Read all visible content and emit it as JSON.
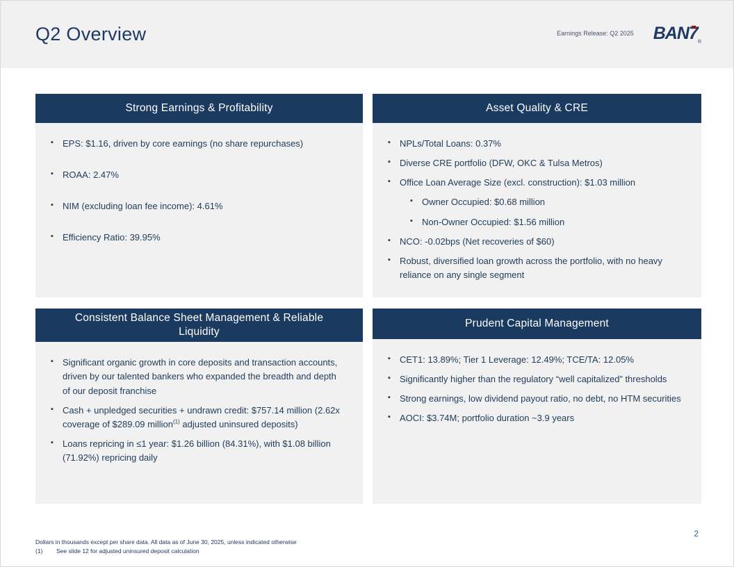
{
  "page": {
    "title": "Q2 Overview",
    "eyebrow": "Earnings Release: Q2 2025",
    "logo_text_main": "BAN",
    "logo_text_seven": "7",
    "logo_reg": "®",
    "page_number": "2",
    "footer_line1": "Dollars in thousands except per share data. All data as of June 30, 2025, unless indicated otherwise",
    "footer_note_label": "(1)",
    "footer_note_text": "See slide 12 for adjusted uninsured deposit calculation"
  },
  "colors": {
    "header_navy": "#1b3a5f",
    "panel_bg": "#f1f1f2",
    "body_text": "#1f3b57",
    "title_navy": "#1f3864",
    "logo_red": "#c00000"
  },
  "panels": [
    {
      "title": "Strong Earnings & Profitability",
      "bullets": [
        {
          "text": "EPS: $1.16, driven by core earnings (no share repurchases)"
        },
        {
          "text": "ROAA: 2.47%"
        },
        {
          "text": "NIM (excluding loan fee income): 4.61%"
        },
        {
          "text": "Efficiency Ratio: 39.95%"
        }
      ]
    },
    {
      "title": "Asset Quality & CRE",
      "bullets": [
        {
          "text": "NPLs/Total Loans: 0.37%"
        },
        {
          "text": "Diverse CRE portfolio (DFW, OKC & Tulsa Metros)"
        },
        {
          "text": "Office Loan Average Size (excl. construction): $1.03 million",
          "sub": [
            {
              "text": "Owner Occupied: $0.68 million"
            },
            {
              "text": "Non-Owner Occupied: $1.56 million"
            }
          ]
        },
        {
          "text": "NCO: -0.02bps (Net recoveries of $60)"
        },
        {
          "text": "Robust, diversified loan growth across the portfolio, with no heavy reliance on any single segment"
        }
      ]
    },
    {
      "title": "Consistent Balance Sheet Management & Reliable Liquidity",
      "bullets": [
        {
          "text": "Significant organic growth in core deposits and transaction accounts, driven by our talented bankers who expanded the breadth and depth of our deposit franchise"
        },
        {
          "parts": {
            "before": "Cash + unpledged securities + undrawn credit: $757.14 million (2.62x coverage of $289.09 million",
            "sup": "(1)",
            "after": " adjusted uninsured deposits)"
          }
        },
        {
          "text": "Loans repricing in ≤1 year: $1.26 billion (84.31%), with $1.08 billion (71.92%) repricing daily"
        }
      ]
    },
    {
      "title": "Prudent Capital Management",
      "bullets": [
        {
          "text": "CET1: 13.89%; Tier 1 Leverage: 12.49%; TCE/TA: 12.05%"
        },
        {
          "text": "Significantly higher than the regulatory “well capitalized” thresholds"
        },
        {
          "text": "Strong earnings, low dividend payout ratio, no debt, no HTM securities"
        },
        {
          "text": "AOCI: $3.74M; portfolio duration ~3.9 years"
        }
      ]
    }
  ]
}
